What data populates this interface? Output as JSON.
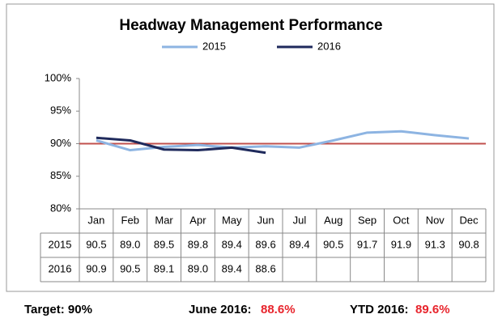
{
  "chart_data": {
    "type": "line",
    "title": "Headway Management Performance",
    "categories": [
      "Jan",
      "Feb",
      "Mar",
      "Apr",
      "May",
      "Jun",
      "Jul",
      "Aug",
      "Sep",
      "Oct",
      "Nov",
      "Dec"
    ],
    "series": [
      {
        "name": "2015",
        "color": "#8db4e2",
        "values": [
          90.5,
          89.0,
          89.5,
          89.8,
          89.4,
          89.6,
          89.4,
          90.5,
          91.7,
          91.9,
          91.3,
          90.8
        ],
        "value_labels": [
          "90.5",
          "89.0",
          "89.5",
          "89.8",
          "89.4",
          "89.6",
          "89.4",
          "90.5",
          "91.7",
          "91.9",
          "91.3",
          "90.8"
        ]
      },
      {
        "name": "2016",
        "color": "#1f2a5c",
        "values": [
          90.9,
          90.5,
          89.1,
          89.0,
          89.4,
          88.6,
          null,
          null,
          null,
          null,
          null,
          null
        ],
        "value_labels": [
          "90.9",
          "90.5",
          "89.1",
          "89.0",
          "89.4",
          "88.6",
          null,
          null,
          null,
          null,
          null,
          null
        ]
      }
    ],
    "ylim": [
      80,
      100
    ],
    "yticks": [
      {
        "value": 80,
        "label": "80%"
      },
      {
        "value": 85,
        "label": "85%"
      },
      {
        "value": 90,
        "label": "90%"
      },
      {
        "value": 95,
        "label": "95%"
      },
      {
        "value": 100,
        "label": "100%"
      }
    ],
    "target_line": {
      "value": 90,
      "color": "#c0504d"
    },
    "legend": "top",
    "footer": {
      "target": "Target: 90%",
      "june_label": "June 2016:",
      "june_value": "88.6%",
      "ytd_label": "YTD 2016:",
      "ytd_value": "89.6%",
      "highlight_color": "#e8242c"
    }
  }
}
